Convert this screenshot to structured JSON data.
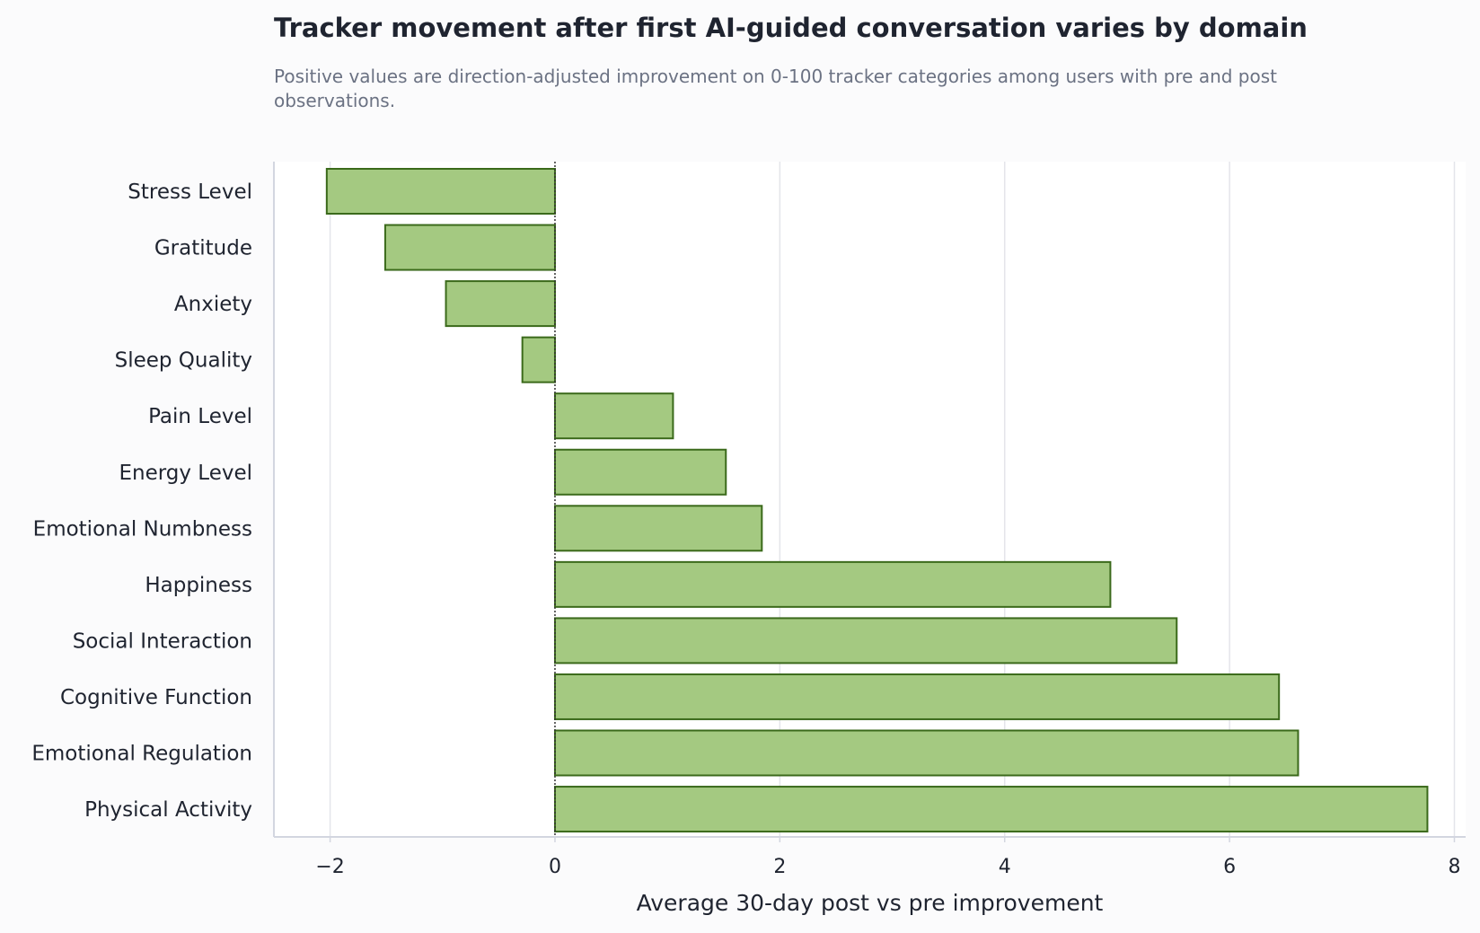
{
  "chart_data": {
    "type": "bar",
    "orientation": "horizontal",
    "title": "Tracker movement after first AI-guided conversation varies by domain",
    "subtitle": "Positive values are direction-adjusted improvement on 0-100 tracker categories among users with pre and post observations.",
    "xlabel": "Average 30-day post vs pre improvement",
    "ylabel": "",
    "xlim": [
      -2.5,
      8.1
    ],
    "xticks": [
      -2,
      0,
      2,
      4,
      6,
      8
    ],
    "xtick_labels": [
      "−2",
      "0",
      "2",
      "4",
      "6",
      "8"
    ],
    "grid": "vertical",
    "zero_line": "dotted",
    "categories": [
      "Stress Level",
      "Gratitude",
      "Anxiety",
      "Sleep Quality",
      "Pain Level",
      "Energy Level",
      "Emotional Numbness",
      "Happiness",
      "Social Interaction",
      "Cognitive Function",
      "Emotional Regulation",
      "Physical Activity"
    ],
    "values": [
      -2.03,
      -1.51,
      -0.97,
      -0.29,
      1.05,
      1.52,
      1.84,
      4.94,
      5.53,
      6.44,
      6.61,
      7.76
    ],
    "colors": {
      "bar_fill": "#a4c981",
      "bar_edge": "#3b6a1b",
      "grid": "#e4e5ea",
      "axis": "#d3d6e0",
      "zero_line": "#333333"
    }
  }
}
